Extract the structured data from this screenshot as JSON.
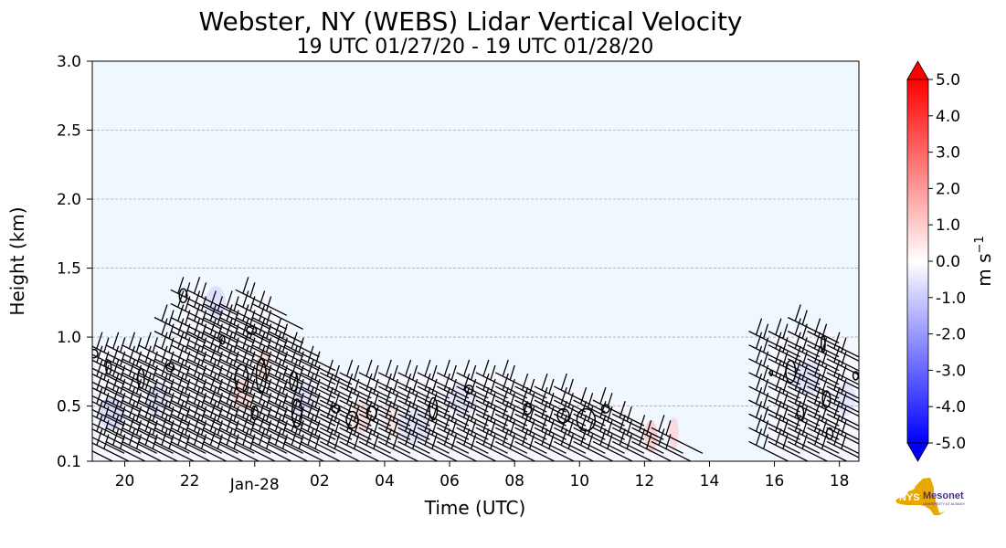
{
  "chart_data": {
    "type": "heatmap",
    "title": "Webster, NY (WEBS) Lidar Vertical Velocity",
    "subtitle": "19 UTC 01/27/20 - 19 UTC 01/28/20",
    "xlabel": "Time (UTC)",
    "ylabel": "Height (km)",
    "xlim": [
      19,
      42.6
    ],
    "ylim": [
      0.1,
      3.0
    ],
    "x_ticks": [
      {
        "value": 20,
        "label": "20"
      },
      {
        "value": 22,
        "label": "22"
      },
      {
        "value": 24,
        "label": "Jan-28"
      },
      {
        "value": 26,
        "label": "02"
      },
      {
        "value": 28,
        "label": "04"
      },
      {
        "value": 30,
        "label": "06"
      },
      {
        "value": 32,
        "label": "08"
      },
      {
        "value": 34,
        "label": "10"
      },
      {
        "value": 36,
        "label": "12"
      },
      {
        "value": 38,
        "label": "14"
      },
      {
        "value": 40,
        "label": "16"
      },
      {
        "value": 42,
        "label": "18"
      }
    ],
    "y_ticks": [
      {
        "value": 0.1,
        "label": "0.1"
      },
      {
        "value": 0.5,
        "label": "0.5"
      },
      {
        "value": 1.0,
        "label": "1.0"
      },
      {
        "value": 1.5,
        "label": "1.5"
      },
      {
        "value": 2.0,
        "label": "2.0"
      },
      {
        "value": 2.5,
        "label": "2.5"
      },
      {
        "value": 3.0,
        "label": "3.0"
      }
    ],
    "grid": true,
    "colorbar": {
      "label": "m s",
      "label_exp": "−1",
      "range": [
        -5.0,
        5.0
      ],
      "ticks": [
        "5.0",
        "4.0",
        "3.0",
        "2.0",
        "1.0",
        "0.0",
        "-1.0",
        "-2.0",
        "-3.0",
        "-4.0",
        "-5.0"
      ],
      "tick_values": [
        5,
        4,
        3,
        2,
        1,
        0,
        -1,
        -2,
        -3,
        -4,
        -5
      ],
      "colors": {
        "high": "#ff0000",
        "mid": "#ffffff",
        "low": "#0000ff"
      }
    },
    "background_color": "#f0f8ff",
    "data_top_km": [
      {
        "x": 19.1,
        "top": 0.92
      },
      {
        "x": 19.5,
        "top": 0.98
      },
      {
        "x": 20.0,
        "top": 0.95
      },
      {
        "x": 20.5,
        "top": 0.9
      },
      {
        "x": 21.0,
        "top": 0.95
      },
      {
        "x": 21.5,
        "top": 1.0
      },
      {
        "x": 22.0,
        "top": 1.45
      },
      {
        "x": 22.6,
        "top": 1.35
      },
      {
        "x": 23.2,
        "top": 1.25
      },
      {
        "x": 23.8,
        "top": 1.3
      },
      {
        "x": 24.4,
        "top": 1.35
      },
      {
        "x": 25.0,
        "top": 1.1
      },
      {
        "x": 25.6,
        "top": 0.95
      },
      {
        "x": 26.2,
        "top": 0.8
      },
      {
        "x": 26.8,
        "top": 0.72
      },
      {
        "x": 27.5,
        "top": 0.7
      },
      {
        "x": 28.5,
        "top": 0.75
      },
      {
        "x": 29.5,
        "top": 0.72
      },
      {
        "x": 30.5,
        "top": 0.8
      },
      {
        "x": 31.5,
        "top": 0.75
      },
      {
        "x": 32.5,
        "top": 0.7
      },
      {
        "x": 33.5,
        "top": 0.65
      },
      {
        "x": 34.5,
        "top": 0.6
      },
      {
        "x": 35.5,
        "top": 0.5
      },
      {
        "x": 36.3,
        "top": 0.4
      },
      {
        "x": 36.8,
        "top": 0.38
      },
      {
        "x": 37.3,
        "top": 0.25
      },
      {
        "x": 37.6,
        "top": 0.1
      }
    ],
    "data_second_top_km": [
      {
        "x": 39.8,
        "top": 0.1
      },
      {
        "x": 39.9,
        "top": 1.0
      },
      {
        "x": 40.5,
        "top": 1.05
      },
      {
        "x": 41.2,
        "top": 1.1
      },
      {
        "x": 42.0,
        "top": 1.0
      },
      {
        "x": 42.6,
        "top": 0.95
      }
    ],
    "hot_spots": [
      {
        "x": 23.6,
        "y": 0.58,
        "w": 0.6,
        "v": 1.2
      },
      {
        "x": 24.3,
        "y": 0.8,
        "w": 0.5,
        "v": 1.0
      },
      {
        "x": 27.3,
        "y": 0.42,
        "w": 0.6,
        "v": 1.1
      },
      {
        "x": 28.2,
        "y": 0.4,
        "w": 0.5,
        "v": 0.8
      },
      {
        "x": 36.2,
        "y": 0.28,
        "w": 0.4,
        "v": 1.5
      },
      {
        "x": 36.9,
        "y": 0.3,
        "w": 0.3,
        "v": 1.2
      }
    ],
    "cold_spots": [
      {
        "x": 19.6,
        "y": 0.45,
        "w": 0.8,
        "v": -1.2
      },
      {
        "x": 21.0,
        "y": 0.55,
        "w": 0.7,
        "v": -0.9
      },
      {
        "x": 22.8,
        "y": 1.25,
        "w": 0.6,
        "v": -1.0
      },
      {
        "x": 25.5,
        "y": 0.55,
        "w": 0.8,
        "v": -0.8
      },
      {
        "x": 28.9,
        "y": 0.35,
        "w": 1.0,
        "v": -0.8
      },
      {
        "x": 30.4,
        "y": 0.55,
        "w": 0.9,
        "v": -0.7
      },
      {
        "x": 41.0,
        "y": 0.7,
        "w": 0.9,
        "v": -0.9
      },
      {
        "x": 42.2,
        "y": 0.55,
        "w": 0.6,
        "v": -0.8
      }
    ],
    "contours": [
      {
        "x": 19.05,
        "y": 0.88,
        "rx": 0.12,
        "ry": 0.03
      },
      {
        "x": 19.5,
        "y": 0.78,
        "rx": 0.08,
        "ry": 0.05
      },
      {
        "x": 20.5,
        "y": 0.7,
        "rx": 0.1,
        "ry": 0.07
      },
      {
        "x": 21.4,
        "y": 0.78,
        "rx": 0.12,
        "ry": 0.03
      },
      {
        "x": 21.8,
        "y": 1.3,
        "rx": 0.12,
        "ry": 0.05
      },
      {
        "x": 23.0,
        "y": 0.98,
        "rx": 0.08,
        "ry": 0.03
      },
      {
        "x": 23.9,
        "y": 1.05,
        "rx": 0.15,
        "ry": 0.03
      },
      {
        "x": 23.6,
        "y": 0.7,
        "rx": 0.2,
        "ry": 0.1
      },
      {
        "x": 24.2,
        "y": 0.72,
        "rx": 0.15,
        "ry": 0.12
      },
      {
        "x": 24.0,
        "y": 0.45,
        "rx": 0.1,
        "ry": 0.05
      },
      {
        "x": 25.2,
        "y": 0.68,
        "rx": 0.12,
        "ry": 0.07
      },
      {
        "x": 25.3,
        "y": 0.45,
        "rx": 0.15,
        "ry": 0.1
      },
      {
        "x": 26.5,
        "y": 0.48,
        "rx": 0.12,
        "ry": 0.03
      },
      {
        "x": 27.0,
        "y": 0.4,
        "rx": 0.18,
        "ry": 0.06
      },
      {
        "x": 27.6,
        "y": 0.45,
        "rx": 0.15,
        "ry": 0.05
      },
      {
        "x": 29.5,
        "y": 0.48,
        "rx": 0.12,
        "ry": 0.08
      },
      {
        "x": 30.6,
        "y": 0.62,
        "rx": 0.12,
        "ry": 0.03
      },
      {
        "x": 32.4,
        "y": 0.48,
        "rx": 0.12,
        "ry": 0.04
      },
      {
        "x": 33.5,
        "y": 0.43,
        "rx": 0.18,
        "ry": 0.05
      },
      {
        "x": 34.2,
        "y": 0.4,
        "rx": 0.28,
        "ry": 0.08
      },
      {
        "x": 34.8,
        "y": 0.48,
        "rx": 0.12,
        "ry": 0.03
      },
      {
        "x": 39.9,
        "y": 0.74,
        "rx": 0.04,
        "ry": 0.02
      },
      {
        "x": 40.5,
        "y": 0.75,
        "rx": 0.15,
        "ry": 0.08
      },
      {
        "x": 40.8,
        "y": 0.45,
        "rx": 0.1,
        "ry": 0.05
      },
      {
        "x": 41.5,
        "y": 0.95,
        "rx": 0.06,
        "ry": 0.06
      },
      {
        "x": 41.6,
        "y": 0.55,
        "rx": 0.12,
        "ry": 0.06
      },
      {
        "x": 41.7,
        "y": 0.3,
        "rx": 0.1,
        "ry": 0.04
      },
      {
        "x": 42.5,
        "y": 0.72,
        "rx": 0.08,
        "ry": 0.03
      }
    ],
    "wind_barbs": {
      "columns": [
        19.2,
        19.7,
        20.2,
        20.7,
        21.2,
        21.7,
        22.2,
        22.7,
        23.2,
        23.7,
        24.2,
        24.7,
        25.2,
        25.7,
        26.2,
        26.8,
        27.4,
        28.0,
        28.6,
        29.2,
        29.8,
        30.4,
        31.0,
        31.6,
        32.2,
        32.8,
        33.4,
        34.0,
        34.6,
        35.2,
        35.8,
        36.4,
        37.0,
        40.0,
        40.6,
        41.2,
        41.8,
        42.4
      ],
      "levels": [
        0.15,
        0.25,
        0.35,
        0.45,
        0.55,
        0.65,
        0.75,
        0.85,
        0.95,
        1.05,
        1.15,
        1.25
      ],
      "length_km": 0.12,
      "feather_angle_deg": 75
    }
  },
  "logo": {
    "text": "NYS",
    "name": "Mesonet",
    "sub": "UNIVERSITY AT ALBANY",
    "brand_color": "#e8a800",
    "name_color": "#4b2e83"
  }
}
